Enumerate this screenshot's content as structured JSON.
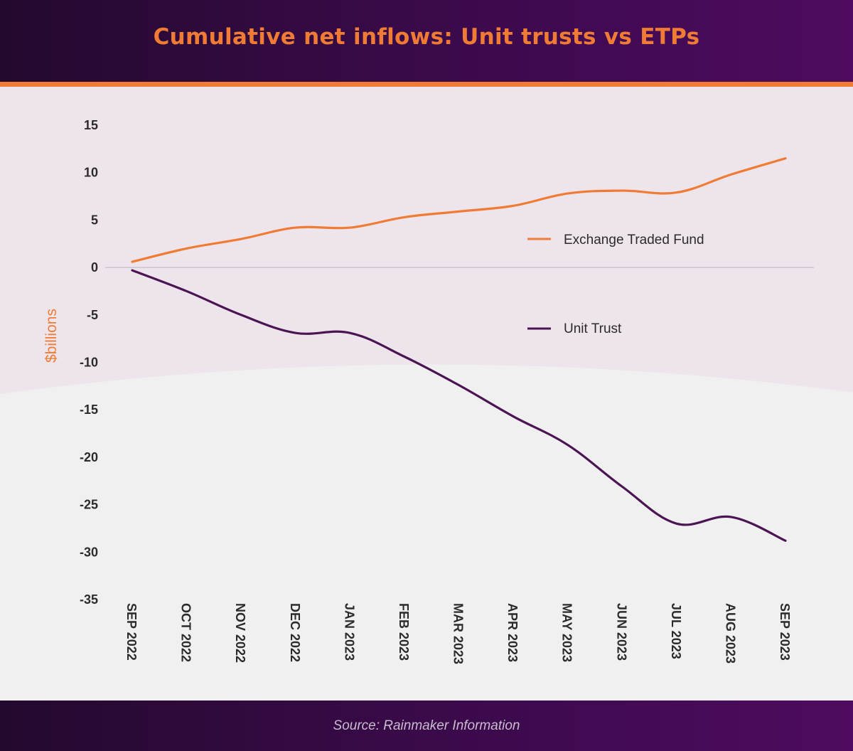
{
  "header": {
    "title": "Cumulative net inflows: Unit trusts vs ETPs"
  },
  "footer": {
    "source": "Source: Rainmaker Information"
  },
  "colors": {
    "etf": "#f07b34",
    "unit_trust": "#4a1552",
    "accent": "#f07b34"
  },
  "chart_data": {
    "type": "line",
    "title": "Cumulative net inflows: Unit trusts vs ETPs",
    "xlabel": "",
    "ylabel": "$billions",
    "ylim": [
      -35,
      15
    ],
    "yticks": [
      15,
      10,
      5,
      0,
      -5,
      -10,
      -15,
      -20,
      -25,
      -30,
      -35
    ],
    "categories": [
      "SEP 2022",
      "OCT 2022",
      "NOV 2022",
      "DEC 2022",
      "JAN 2023",
      "FEB 2023",
      "MAR 2023",
      "APR 2023",
      "MAY 2023",
      "JUN 2023",
      "JUL 2023",
      "AUG 2023",
      "SEP 2023"
    ],
    "series": [
      {
        "name": "Exchange Traded Fund",
        "values": [
          0.6,
          2.0,
          3.0,
          4.2,
          4.2,
          5.3,
          5.9,
          6.5,
          7.8,
          8.1,
          7.9,
          9.8,
          11.5
        ]
      },
      {
        "name": "Unit Trust",
        "values": [
          -0.3,
          -2.5,
          -5.0,
          -6.9,
          -6.9,
          -9.4,
          -12.4,
          -15.7,
          -18.7,
          -23.1,
          -27.0,
          -26.3,
          -28.8
        ]
      }
    ],
    "grid": false,
    "legend": "inside-right"
  }
}
